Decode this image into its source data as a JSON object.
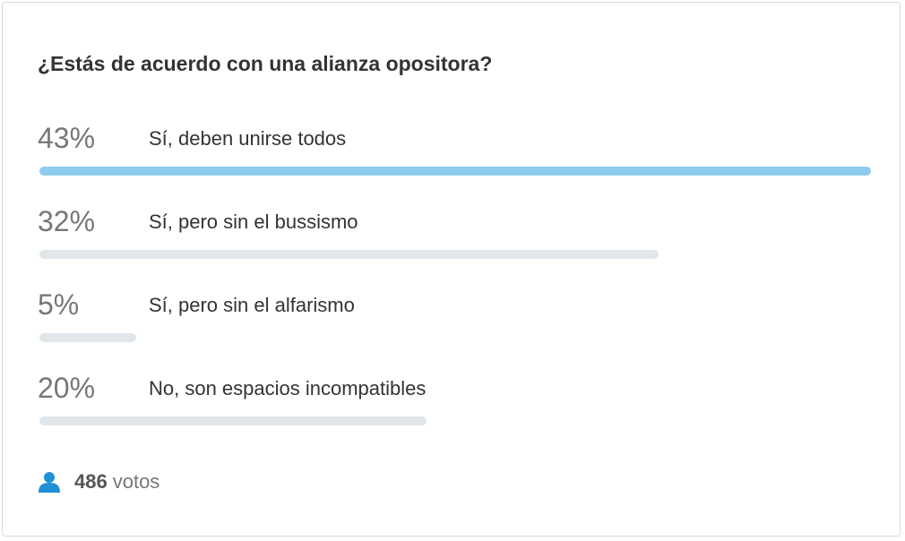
{
  "poll": {
    "title": "¿Estás de acuerdo con una alianza opositora?",
    "options": [
      {
        "value": 43,
        "value_label": "43%",
        "label": "Sí, deben unirse todos"
      },
      {
        "value": 32,
        "value_label": "32%",
        "label": "Sí, pero sin el bussismo"
      },
      {
        "value": 5,
        "value_label": "5%",
        "label": "Sí, pero sin el alfarismo"
      },
      {
        "value": 20,
        "value_label": "20%",
        "label": "No, son espacios incompatibles"
      }
    ],
    "votes": {
      "count": "486",
      "label": "votos"
    },
    "colors": {
      "leader": "#8ecbee",
      "other": "#e1e6ea"
    }
  }
}
